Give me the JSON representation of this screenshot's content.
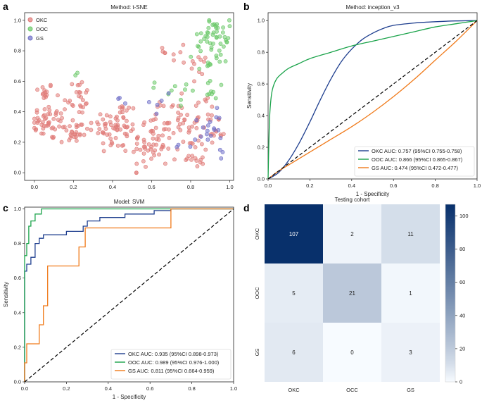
{
  "figure": {
    "panel_labels": [
      "a",
      "b",
      "c",
      "d"
    ]
  },
  "chart_data": [
    {
      "type": "scatter",
      "panel": "a",
      "title": "Method: t-SNE",
      "xlim": [
        -0.05,
        1.02
      ],
      "ylim": [
        -0.05,
        1.05
      ],
      "xticks": [
        "0.0",
        "0.2",
        "0.4",
        "0.6",
        "0.8",
        "1.0"
      ],
      "xtick_values": [
        0,
        0.2,
        0.4,
        0.6,
        0.8,
        1.0
      ],
      "yticks": [
        "0.0",
        "0.2",
        "0.4",
        "0.6",
        "0.8",
        "1.0"
      ],
      "ytick_values": [
        0,
        0.2,
        0.4,
        0.6,
        0.8,
        1.0
      ],
      "legend_position": "top-left",
      "series": [
        {
          "name": "OKC",
          "color": "#e07b78",
          "clusters": [
            {
              "cx": 0.05,
              "cy": 0.53,
              "sx": 0.025,
              "sy": 0.03,
              "n": 14
            },
            {
              "cx": 0.08,
              "cy": 0.33,
              "sx": 0.05,
              "sy": 0.06,
              "n": 45
            },
            {
              "cx": 0.22,
              "cy": 0.5,
              "sx": 0.035,
              "sy": 0.06,
              "n": 24
            },
            {
              "cx": 0.2,
              "cy": 0.27,
              "sx": 0.05,
              "sy": 0.05,
              "n": 30
            },
            {
              "cx": 0.42,
              "cy": 0.3,
              "sx": 0.06,
              "sy": 0.09,
              "n": 65
            },
            {
              "cx": 0.6,
              "cy": 0.2,
              "sx": 0.05,
              "sy": 0.1,
              "n": 55
            },
            {
              "cx": 0.75,
              "cy": 0.32,
              "sx": 0.05,
              "sy": 0.12,
              "n": 45
            },
            {
              "cx": 0.74,
              "cy": 0.8,
              "sx": 0.04,
              "sy": 0.04,
              "n": 8
            },
            {
              "cx": 0.84,
              "cy": 0.72,
              "sx": 0.03,
              "sy": 0.07,
              "n": 10
            },
            {
              "cx": 0.88,
              "cy": 0.35,
              "sx": 0.03,
              "sy": 0.07,
              "n": 12
            },
            {
              "cx": 0.83,
              "cy": 0.12,
              "sx": 0.04,
              "sy": 0.05,
              "n": 14
            },
            {
              "cx": 0.93,
              "cy": 0.25,
              "sx": 0.025,
              "sy": 0.07,
              "n": 10
            }
          ]
        },
        {
          "name": "OOC",
          "color": "#6cc96a",
          "clusters": [
            {
              "cx": 0.94,
              "cy": 0.92,
              "sx": 0.03,
              "sy": 0.05,
              "n": 30
            },
            {
              "cx": 0.85,
              "cy": 0.85,
              "sx": 0.03,
              "sy": 0.05,
              "n": 12
            },
            {
              "cx": 0.92,
              "cy": 0.72,
              "sx": 0.04,
              "sy": 0.05,
              "n": 14
            },
            {
              "cx": 0.88,
              "cy": 0.55,
              "sx": 0.04,
              "sy": 0.04,
              "n": 9
            },
            {
              "cx": 0.75,
              "cy": 0.5,
              "sx": 0.04,
              "sy": 0.06,
              "n": 6
            },
            {
              "cx": 0.22,
              "cy": 0.65,
              "sx": 0.01,
              "sy": 0.01,
              "n": 2
            },
            {
              "cx": 0.63,
              "cy": 0.55,
              "sx": 0.02,
              "sy": 0.03,
              "n": 3
            }
          ]
        },
        {
          "name": "GS",
          "color": "#7070c8",
          "clusters": [
            {
              "cx": 0.9,
              "cy": 0.3,
              "sx": 0.03,
              "sy": 0.07,
              "n": 12
            },
            {
              "cx": 0.65,
              "cy": 0.48,
              "sx": 0.03,
              "sy": 0.04,
              "n": 5
            },
            {
              "cx": 0.82,
              "cy": 0.2,
              "sx": 0.04,
              "sy": 0.08,
              "n": 7
            },
            {
              "cx": 0.45,
              "cy": 0.45,
              "sx": 0.03,
              "sy": 0.03,
              "n": 3
            },
            {
              "cx": 0.97,
              "cy": 0.22,
              "sx": 0.015,
              "sy": 0.05,
              "n": 4
            }
          ]
        }
      ]
    },
    {
      "type": "line",
      "panel": "b",
      "title": "Method: inception_v3",
      "xlabel": "1 - Specificity",
      "ylabel": "Sensitivity",
      "xlim": [
        0,
        1
      ],
      "ylim": [
        0,
        1.05
      ],
      "xticks": [
        "0.0",
        "0.2",
        "0.4",
        "0.6",
        "0.8",
        "1.0"
      ],
      "xtick_values": [
        0,
        0.2,
        0.4,
        0.6,
        0.8,
        1.0
      ],
      "yticks": [
        "0.0",
        "0.2",
        "0.4",
        "0.6",
        "0.8",
        "1.0"
      ],
      "ytick_values": [
        0,
        0.2,
        0.4,
        0.6,
        0.8,
        1.0
      ],
      "legend_position": "lower-right",
      "series": [
        {
          "name": "OKC AUC: 0.757 (95%CI 0.755-0.758)",
          "color": "#1f3f8f",
          "x": [
            0,
            0.05,
            0.1,
            0.15,
            0.2,
            0.25,
            0.3,
            0.35,
            0.4,
            0.45,
            0.5,
            0.55,
            0.6,
            0.7,
            0.8,
            0.9,
            1.0
          ],
          "y": [
            0,
            0.04,
            0.12,
            0.23,
            0.36,
            0.5,
            0.63,
            0.74,
            0.82,
            0.88,
            0.92,
            0.95,
            0.97,
            0.985,
            0.993,
            0.998,
            1.0
          ]
        },
        {
          "name": "OOC AUC: 0.866 (95%CI 0.865-0.867)",
          "color": "#1aa34a",
          "x": [
            0,
            0.005,
            0.01,
            0.02,
            0.04,
            0.07,
            0.1,
            0.15,
            0.2,
            0.3,
            0.4,
            0.5,
            0.6,
            0.7,
            0.8,
            0.9,
            1.0
          ],
          "y": [
            0,
            0.3,
            0.45,
            0.56,
            0.63,
            0.67,
            0.7,
            0.73,
            0.76,
            0.8,
            0.84,
            0.87,
            0.9,
            0.93,
            0.96,
            0.98,
            1.0
          ]
        },
        {
          "name": "GS AUC: 0.474 (95%CI 0.472-0.477)",
          "color": "#f07a1a",
          "x": [
            0,
            0.05,
            0.1,
            0.15,
            0.2,
            0.3,
            0.4,
            0.5,
            0.6,
            0.7,
            0.8,
            0.9,
            1.0
          ],
          "y": [
            0,
            0.05,
            0.09,
            0.13,
            0.17,
            0.25,
            0.33,
            0.42,
            0.52,
            0.63,
            0.75,
            0.87,
            1.0
          ]
        },
        {
          "name": "",
          "color": "#000000",
          "dashed": true,
          "x": [
            0,
            1
          ],
          "y": [
            0,
            1
          ]
        }
      ]
    },
    {
      "type": "line",
      "panel": "c",
      "title": "Model: SVM",
      "xlabel": "1 - Specificity",
      "ylabel": "Sensitivity",
      "xlim": [
        0,
        1
      ],
      "ylim": [
        0,
        1.01
      ],
      "xticks": [
        "0.0",
        "0.2",
        "0.4",
        "0.6",
        "0.8",
        "1.0"
      ],
      "xtick_values": [
        0,
        0.2,
        0.4,
        0.6,
        0.8,
        1.0
      ],
      "yticks": [
        "0.0",
        "0.2",
        "0.4",
        "0.6",
        "0.8",
        "1.0"
      ],
      "ytick_values": [
        0,
        0.2,
        0.4,
        0.6,
        0.8,
        1.0
      ],
      "legend_position": "lower-right",
      "series": [
        {
          "name": "OKC AUC: 0.935 (95%CI 0.898-0.973)",
          "color": "#1f3f8f",
          "step": true,
          "x": [
            0,
            0,
            0.01,
            0.01,
            0.03,
            0.03,
            0.05,
            0.05,
            0.07,
            0.07,
            0.09,
            0.09,
            0.2,
            0.2,
            0.28,
            0.28,
            0.3,
            0.3,
            0.36,
            0.36,
            0.48,
            0.48,
            0.62,
            0.62,
            0.7,
            0.7,
            1.0
          ],
          "y": [
            0,
            0.64,
            0.64,
            0.68,
            0.68,
            0.72,
            0.72,
            0.8,
            0.8,
            0.83,
            0.83,
            0.85,
            0.85,
            0.87,
            0.87,
            0.9,
            0.9,
            0.93,
            0.93,
            0.95,
            0.95,
            0.97,
            0.97,
            0.99,
            0.99,
            1.0,
            1.0
          ]
        },
        {
          "name": "OOC AUC: 0.989 (95%CI 0.976-1.000)",
          "color": "#1aa34a",
          "step": true,
          "x": [
            0,
            0,
            0.01,
            0.01,
            0.02,
            0.02,
            0.03,
            0.03,
            0.05,
            0.05,
            0.08,
            0.08,
            1.0
          ],
          "y": [
            0,
            0.73,
            0.73,
            0.8,
            0.8,
            0.9,
            0.9,
            0.93,
            0.93,
            0.97,
            0.97,
            1.0,
            1.0
          ]
        },
        {
          "name": "GS AUC: 0.811 (95%CI 0.664-0.959)",
          "color": "#f07a1a",
          "step": true,
          "x": [
            0,
            0,
            0.01,
            0.01,
            0.07,
            0.07,
            0.09,
            0.09,
            0.11,
            0.11,
            0.26,
            0.26,
            0.29,
            0.29,
            0.7,
            0.7,
            1.0
          ],
          "y": [
            0,
            0.11,
            0.11,
            0.22,
            0.22,
            0.33,
            0.33,
            0.44,
            0.44,
            0.67,
            0.67,
            0.78,
            0.78,
            0.89,
            0.89,
            1.0,
            1.0
          ]
        },
        {
          "name": "",
          "color": "#000000",
          "dashed": true,
          "x": [
            0,
            1
          ],
          "y": [
            0,
            1
          ]
        }
      ]
    },
    {
      "type": "heatmap",
      "panel": "d",
      "title": "Testing cohort",
      "row_labels": [
        "OKC",
        "OOC",
        "GS"
      ],
      "col_labels": [
        "OKC",
        "OCC",
        "GS"
      ],
      "values": [
        [
          107,
          2,
          11
        ],
        [
          5,
          21,
          1
        ],
        [
          6,
          0,
          3
        ]
      ],
      "vmin": 0,
      "vmax": 107,
      "colorbar_ticks": [
        "0",
        "20",
        "40",
        "60",
        "80",
        "100"
      ],
      "colorbar_values": [
        0,
        20,
        40,
        60,
        80,
        100
      ],
      "colormap": [
        "#f7fbff",
        "#08306b"
      ]
    }
  ]
}
